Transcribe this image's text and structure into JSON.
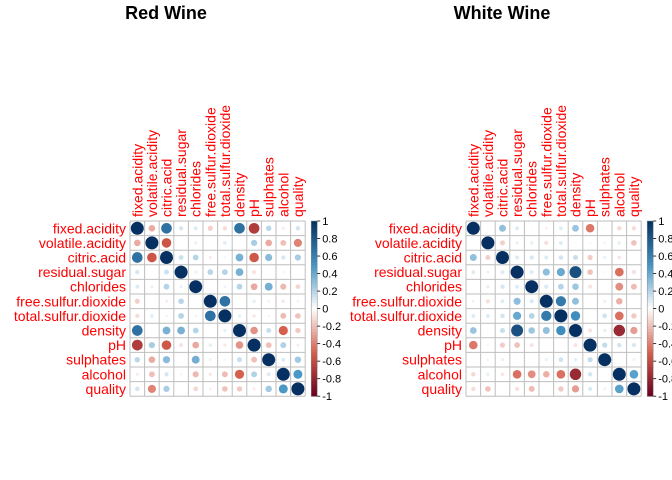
{
  "chart_data": [
    {
      "type": "heatmap",
      "title": "Red Wine",
      "variables": [
        "fixed.acidity",
        "volatile.acidity",
        "citric.acid",
        "residual.sugar",
        "chlorides",
        "free.sulfur.dioxide",
        "total.sulfur.dioxide",
        "density",
        "pH",
        "sulphates",
        "alcohol",
        "quality"
      ],
      "matrix": [
        [
          1.0,
          -0.26,
          0.67,
          0.11,
          0.09,
          -0.15,
          -0.11,
          0.67,
          -0.68,
          0.18,
          -0.06,
          0.12
        ],
        [
          -0.26,
          1.0,
          -0.55,
          0.0,
          0.06,
          -0.01,
          0.08,
          0.02,
          0.23,
          -0.26,
          -0.2,
          -0.39
        ],
        [
          0.67,
          -0.55,
          1.0,
          0.14,
          0.2,
          -0.06,
          0.04,
          0.36,
          -0.54,
          0.31,
          0.11,
          0.23
        ],
        [
          0.11,
          0.0,
          0.14,
          1.0,
          0.06,
          0.19,
          0.2,
          0.36,
          -0.09,
          0.01,
          0.04,
          0.01
        ],
        [
          0.09,
          0.06,
          0.2,
          0.06,
          1.0,
          0.01,
          0.05,
          0.2,
          -0.27,
          0.37,
          -0.22,
          -0.13
        ],
        [
          -0.15,
          -0.01,
          -0.06,
          0.19,
          0.01,
          1.0,
          0.67,
          -0.02,
          0.07,
          0.05,
          -0.07,
          -0.05
        ],
        [
          -0.11,
          0.08,
          0.04,
          0.2,
          0.05,
          0.67,
          1.0,
          0.07,
          -0.07,
          0.04,
          -0.21,
          -0.19
        ],
        [
          0.67,
          0.02,
          0.36,
          0.36,
          0.2,
          -0.02,
          0.07,
          1.0,
          -0.34,
          0.15,
          -0.5,
          -0.17
        ],
        [
          -0.68,
          0.23,
          -0.54,
          -0.09,
          -0.27,
          0.07,
          -0.07,
          -0.34,
          1.0,
          -0.2,
          0.21,
          -0.06
        ],
        [
          0.18,
          -0.26,
          0.31,
          0.01,
          0.37,
          0.05,
          0.04,
          0.15,
          -0.2,
          1.0,
          0.09,
          0.25
        ],
        [
          -0.06,
          -0.2,
          0.11,
          0.04,
          -0.22,
          -0.07,
          -0.21,
          -0.5,
          0.21,
          0.09,
          1.0,
          0.48
        ],
        [
          0.12,
          -0.39,
          0.23,
          0.01,
          -0.13,
          -0.05,
          -0.19,
          -0.17,
          -0.06,
          0.25,
          0.48,
          1.0
        ]
      ],
      "legend_ticks": [
        "1",
        "0.8",
        "0.6",
        "0.4",
        "0.2",
        "0",
        "-0.2",
        "-0.4",
        "-0.6",
        "-0.8",
        "-1"
      ],
      "range": [
        -1,
        1
      ]
    },
    {
      "type": "heatmap",
      "title": "White Wine",
      "variables": [
        "fixed.acidity",
        "volatile.acidity",
        "citric.acid",
        "residual.sugar",
        "chlorides",
        "free.sulfur.dioxide",
        "total.sulfur.dioxide",
        "density",
        "pH",
        "sulphates",
        "alcohol",
        "quality"
      ],
      "matrix": [
        [
          1.0,
          -0.02,
          0.29,
          0.09,
          0.02,
          -0.05,
          0.09,
          0.27,
          -0.43,
          -0.02,
          -0.12,
          -0.11
        ],
        [
          -0.02,
          1.0,
          -0.15,
          0.06,
          0.07,
          -0.1,
          0.09,
          0.03,
          -0.03,
          -0.04,
          0.07,
          -0.19
        ],
        [
          0.29,
          -0.15,
          1.0,
          0.09,
          0.11,
          0.09,
          0.12,
          0.15,
          -0.16,
          0.06,
          -0.08,
          -0.01
        ],
        [
          0.09,
          0.06,
          0.09,
          1.0,
          0.09,
          0.3,
          0.4,
          0.84,
          -0.19,
          -0.03,
          -0.45,
          -0.1
        ],
        [
          0.02,
          0.07,
          0.11,
          0.09,
          1.0,
          0.1,
          0.2,
          0.26,
          -0.09,
          0.02,
          -0.36,
          -0.21
        ],
        [
          -0.05,
          -0.1,
          0.09,
          0.3,
          0.1,
          1.0,
          0.62,
          0.29,
          0.0,
          0.06,
          -0.25,
          0.01
        ],
        [
          0.09,
          0.09,
          0.12,
          0.4,
          0.2,
          0.62,
          1.0,
          0.53,
          0.0,
          0.13,
          -0.45,
          -0.17
        ],
        [
          0.27,
          0.03,
          0.15,
          0.84,
          0.26,
          0.29,
          0.53,
          1.0,
          -0.09,
          0.07,
          -0.78,
          -0.31
        ],
        [
          -0.43,
          -0.03,
          -0.16,
          -0.19,
          -0.09,
          0.0,
          0.0,
          -0.09,
          1.0,
          0.16,
          0.12,
          0.1
        ],
        [
          -0.02,
          -0.04,
          0.06,
          -0.03,
          0.02,
          0.06,
          0.13,
          0.07,
          0.16,
          1.0,
          -0.02,
          0.05
        ],
        [
          -0.12,
          0.07,
          -0.08,
          -0.45,
          -0.36,
          -0.25,
          -0.45,
          -0.78,
          0.12,
          -0.02,
          1.0,
          0.44
        ],
        [
          -0.11,
          -0.19,
          -0.01,
          -0.1,
          -0.21,
          0.01,
          -0.17,
          -0.31,
          0.1,
          0.05,
          0.44,
          1.0
        ]
      ],
      "legend_ticks": [
        "1",
        "0.8",
        "0.6",
        "0.4",
        "0.2",
        "0",
        "-0.2",
        "-0.4",
        "-0.6",
        "-0.8",
        "-1"
      ],
      "range": [
        -1,
        1
      ]
    }
  ],
  "colors": {
    "label": "#ff0000",
    "grid": "#bebebe",
    "negative_strong": "#67001f",
    "negative_mid": "#d6604d",
    "neutral": "#ffffff",
    "positive_mid": "#4393c3",
    "positive_strong": "#053061"
  }
}
